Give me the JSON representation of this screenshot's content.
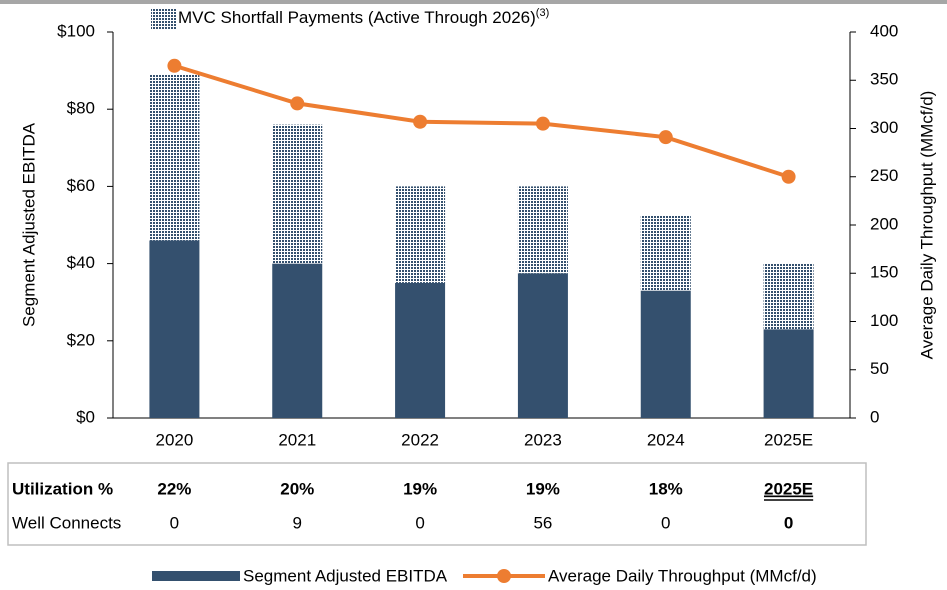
{
  "chart_data": {
    "type": "bar",
    "categories": [
      "2020",
      "2021",
      "2022",
      "2023",
      "2024",
      "2025E"
    ],
    "series": [
      {
        "name": "Segment Adjusted EBITDA",
        "color": "#34506e",
        "values": [
          46,
          40,
          35,
          37.5,
          33,
          23
        ]
      },
      {
        "name": "MVC Shortfall Payments (Active Through 2026)",
        "name_superscript": "(3)",
        "color": "#34506e",
        "pattern": "dots",
        "values": [
          43,
          36,
          25,
          22.5,
          19.5,
          17
        ]
      },
      {
        "name": "Average Daily Throughput (MMcf/d)",
        "color": "#ed7d31",
        "type": "line",
        "axis": "y2",
        "values": [
          365,
          326,
          307,
          305,
          291,
          250
        ]
      }
    ],
    "stacked": true,
    "ylabel": "Segment Adjusted EBITDA",
    "y2label": "Average Daily Throughput (MMcf/d)",
    "ylim": [
      0,
      100
    ],
    "yticks": [
      {
        "value": 0,
        "label": "$0"
      },
      {
        "value": 20,
        "label": "$20"
      },
      {
        "value": 40,
        "label": "$40"
      },
      {
        "value": 60,
        "label": "$60"
      },
      {
        "value": 80,
        "label": "$80"
      },
      {
        "value": 100,
        "label": "$100"
      }
    ],
    "y2lim": [
      0,
      400
    ],
    "y2ticks": [
      0,
      50,
      100,
      150,
      200,
      250,
      300,
      350,
      400
    ]
  },
  "table": {
    "rows": [
      [
        "Utilization %",
        "22%",
        "20%",
        "19%",
        "19%",
        "18%",
        "2025E"
      ],
      [
        "Well Connects",
        "0",
        "9",
        "0",
        "56",
        "0",
        "0"
      ]
    ]
  }
}
